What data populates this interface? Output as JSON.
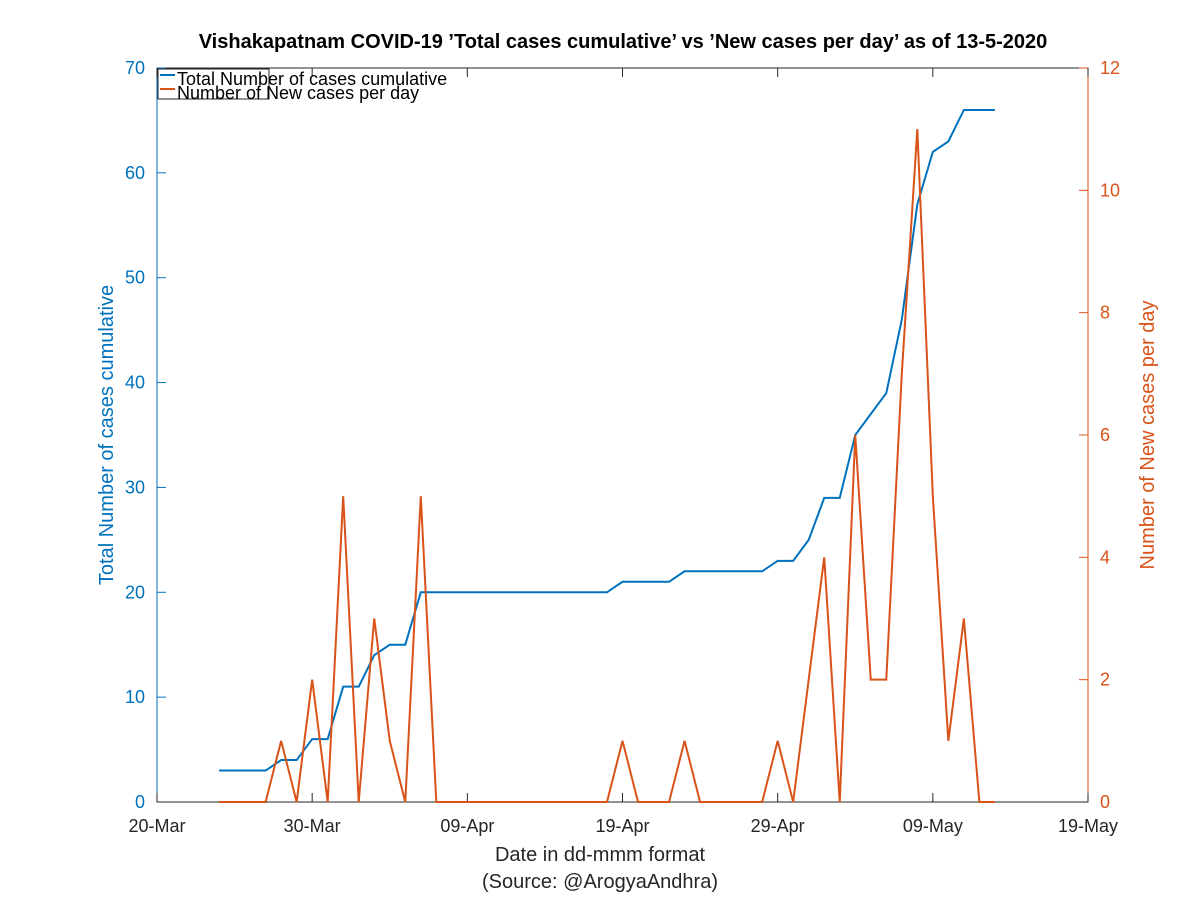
{
  "chart_data": {
    "type": "line",
    "title": "Vishakapatnam COVID-19 ’Total cases cumulative’ vs ’New cases per day’ as of 13-5-2020",
    "xlabel": "Date in dd-mmm format",
    "xlabel_sub": "(Source: @ArogyaAndhra)",
    "ylabel_left": "Total Number of cases cumulative",
    "ylabel_right": "Number of New cases per day",
    "x_ticks": [
      {
        "date": "2020-03-20",
        "label": "20-Mar"
      },
      {
        "date": "2020-03-30",
        "label": "30-Mar"
      },
      {
        "date": "2020-04-09",
        "label": "09-Apr"
      },
      {
        "date": "2020-04-19",
        "label": "19-Apr"
      },
      {
        "date": "2020-04-29",
        "label": "29-Apr"
      },
      {
        "date": "2020-05-09",
        "label": "09-May"
      },
      {
        "date": "2020-05-19",
        "label": "19-May"
      }
    ],
    "xlim": [
      "2020-03-20",
      "2020-05-19"
    ],
    "ylim_left": [
      0,
      70
    ],
    "ylim_right": [
      0,
      12
    ],
    "y_ticks_left": [
      "0",
      "10",
      "20",
      "30",
      "40",
      "50",
      "60",
      "70"
    ],
    "y_ticks_right": [
      "0",
      "2",
      "4",
      "6",
      "8",
      "10",
      "12"
    ],
    "legend_position": "top-left",
    "colors": {
      "cumulative": "#0072BD",
      "new": "#D95319",
      "axis": "#262626"
    },
    "x": [
      "2020-03-24",
      "2020-03-25",
      "2020-03-26",
      "2020-03-27",
      "2020-03-28",
      "2020-03-29",
      "2020-03-30",
      "2020-03-31",
      "2020-04-01",
      "2020-04-02",
      "2020-04-03",
      "2020-04-04",
      "2020-04-05",
      "2020-04-06",
      "2020-04-07",
      "2020-04-08",
      "2020-04-09",
      "2020-04-10",
      "2020-04-11",
      "2020-04-12",
      "2020-04-13",
      "2020-04-14",
      "2020-04-15",
      "2020-04-16",
      "2020-04-17",
      "2020-04-18",
      "2020-04-19",
      "2020-04-20",
      "2020-04-21",
      "2020-04-22",
      "2020-04-23",
      "2020-04-24",
      "2020-04-25",
      "2020-04-26",
      "2020-04-27",
      "2020-04-28",
      "2020-04-29",
      "2020-04-30",
      "2020-05-01",
      "2020-05-02",
      "2020-05-03",
      "2020-05-04",
      "2020-05-05",
      "2020-05-06",
      "2020-05-07",
      "2020-05-08",
      "2020-05-09",
      "2020-05-10",
      "2020-05-11",
      "2020-05-12",
      "2020-05-13"
    ],
    "series": [
      {
        "name": "Total Number of cases cumulative",
        "axis": "left",
        "values": [
          3,
          3,
          3,
          3,
          4,
          4,
          6,
          6,
          11,
          11,
          14,
          15,
          15,
          20,
          20,
          20,
          20,
          20,
          20,
          20,
          20,
          20,
          20,
          20,
          20,
          20,
          21,
          21,
          21,
          21,
          22,
          22,
          22,
          22,
          22,
          22,
          23,
          23,
          25,
          29,
          29,
          35,
          37,
          39,
          46,
          57,
          62,
          63,
          66,
          66,
          66
        ]
      },
      {
        "name": "Number of New cases per day",
        "axis": "right",
        "values": [
          0,
          0,
          0,
          0,
          1,
          0,
          2,
          0,
          5,
          0,
          3,
          1,
          0,
          5,
          0,
          0,
          0,
          0,
          0,
          0,
          0,
          0,
          0,
          0,
          0,
          0,
          1,
          0,
          0,
          0,
          1,
          0,
          0,
          0,
          0,
          0,
          1,
          0,
          2,
          4,
          0,
          6,
          2,
          2,
          7,
          11,
          5,
          1,
          3,
          0,
          0
        ]
      }
    ]
  }
}
